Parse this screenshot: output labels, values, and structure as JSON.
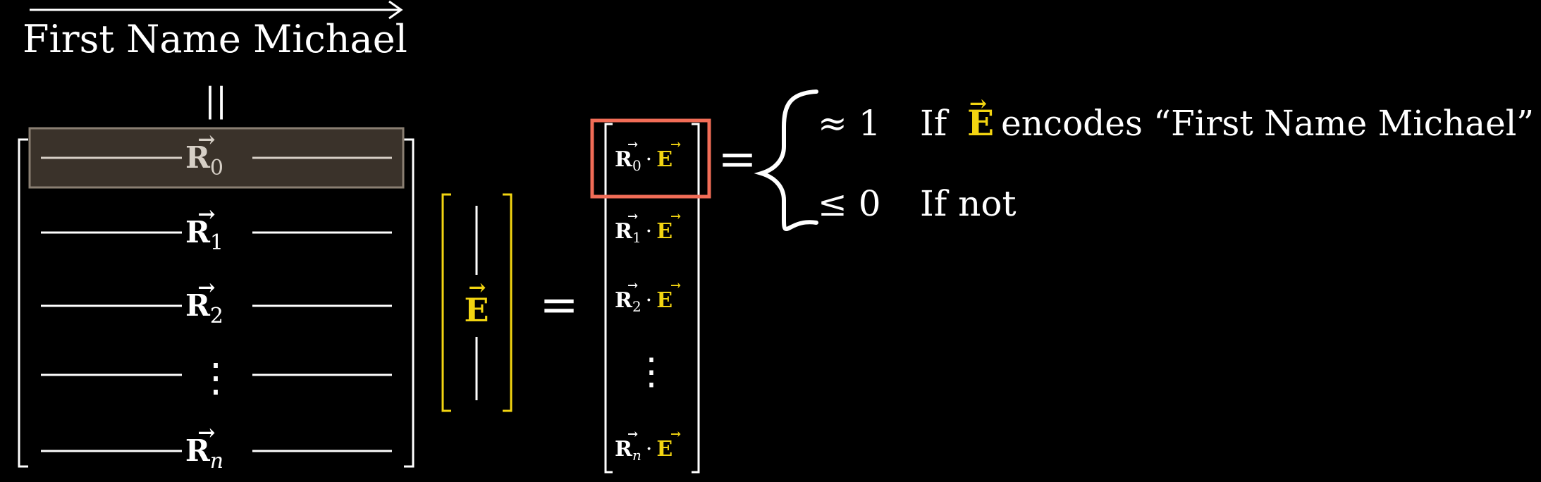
{
  "title": "First Name Michael",
  "equals_vertical": "||",
  "matrix": {
    "rows": [
      {
        "symbol": "R",
        "sub": "0",
        "highlighted": true
      },
      {
        "symbol": "R",
        "sub": "1",
        "highlighted": false
      },
      {
        "symbol": "R",
        "sub": "2",
        "highlighted": false
      },
      {
        "symbol": "⋮",
        "sub": "",
        "highlighted": false
      },
      {
        "symbol": "R",
        "sub": "n",
        "highlighted": false
      }
    ]
  },
  "embedding": {
    "symbol": "E"
  },
  "equals_sign": "=",
  "results": [
    {
      "r_sub": "0",
      "dot": "·",
      "e": "E",
      "highlighted": true
    },
    {
      "r_sub": "1",
      "dot": "·",
      "e": "E",
      "highlighted": false
    },
    {
      "r_sub": "2",
      "dot": "·",
      "e": "E",
      "highlighted": false
    },
    {
      "vdots": "⋮"
    },
    {
      "r_sub": "n",
      "dot": "·",
      "e": "E",
      "highlighted": false
    }
  ],
  "cases": [
    {
      "condition": "≈ 1",
      "if_word": "If",
      "symbol": "E",
      "rest": "encodes “First Name Michael”"
    },
    {
      "condition": "≤ 0",
      "text": "If not"
    }
  ],
  "colors": {
    "background": "#000000",
    "white": "#ffffff",
    "yellow": "#f2d411",
    "highlight_row_fill": "#3a322a",
    "highlight_row_stroke": "#8a7f72",
    "highlight_text": "#d6cfc6",
    "result_box": "#f26d57"
  }
}
